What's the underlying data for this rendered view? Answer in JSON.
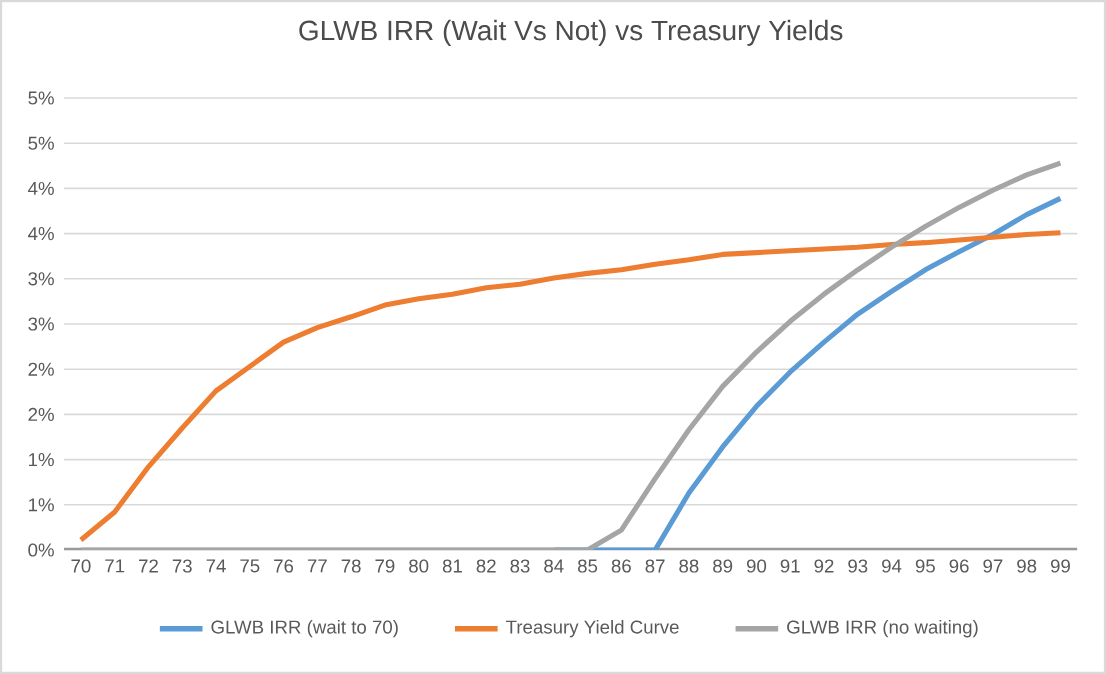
{
  "chart_data": {
    "type": "line",
    "title": "GLWB IRR (Wait Vs Not) vs Treasury Yields",
    "categories": [
      "70",
      "71",
      "72",
      "73",
      "74",
      "75",
      "76",
      "77",
      "78",
      "79",
      "80",
      "81",
      "82",
      "83",
      "84",
      "85",
      "86",
      "87",
      "88",
      "89",
      "90",
      "91",
      "92",
      "93",
      "94",
      "95",
      "96",
      "97",
      "98",
      "99"
    ],
    "series": [
      {
        "name": "GLWB IRR (wait to 70)",
        "color": "#5b9bd5",
        "values": [
          null,
          null,
          null,
          null,
          null,
          null,
          null,
          null,
          null,
          null,
          null,
          null,
          null,
          null,
          0,
          0,
          0,
          0,
          0.63,
          1.14,
          1.59,
          1.97,
          2.3,
          2.61,
          2.86,
          3.1,
          3.3,
          3.49,
          3.71,
          3.89
        ]
      },
      {
        "name": "Treasury Yield Curve",
        "color": "#ed7d31",
        "values": [
          0.11,
          0.42,
          0.92,
          1.35,
          1.76,
          2.03,
          2.3,
          2.46,
          2.58,
          2.71,
          2.78,
          2.83,
          2.9,
          2.94,
          3.01,
          3.06,
          3.1,
          3.16,
          3.21,
          3.27,
          3.29,
          3.31,
          3.33,
          3.35,
          3.38,
          3.4,
          3.43,
          3.46,
          3.49,
          3.51
        ]
      },
      {
        "name": "GLWB IRR (no waiting)",
        "color": "#a5a5a5",
        "values": [
          0,
          0,
          0,
          0,
          0,
          0,
          0,
          0,
          0,
          0,
          0,
          0,
          0,
          0,
          0,
          0,
          0.22,
          0.79,
          1.33,
          1.81,
          2.19,
          2.53,
          2.83,
          3.1,
          3.35,
          3.58,
          3.79,
          3.98,
          4.15,
          4.28
        ]
      }
    ],
    "ylim": [
      0,
      5
    ],
    "yticks": [
      {
        "value": 0,
        "label": "0%"
      },
      {
        "value": 0.5,
        "label": "1%"
      },
      {
        "value": 1,
        "label": "1%"
      },
      {
        "value": 1.5,
        "label": "2%"
      },
      {
        "value": 2,
        "label": "2%"
      },
      {
        "value": 2.5,
        "label": "3%"
      },
      {
        "value": 3,
        "label": "3%"
      },
      {
        "value": 3.5,
        "label": "4%"
      },
      {
        "value": 4,
        "label": "4%"
      },
      {
        "value": 4.5,
        "label": "5%"
      },
      {
        "value": 5,
        "label": "5%"
      }
    ],
    "grid": "y",
    "legend": "bottom",
    "marker": "none",
    "line_style": "solid"
  }
}
